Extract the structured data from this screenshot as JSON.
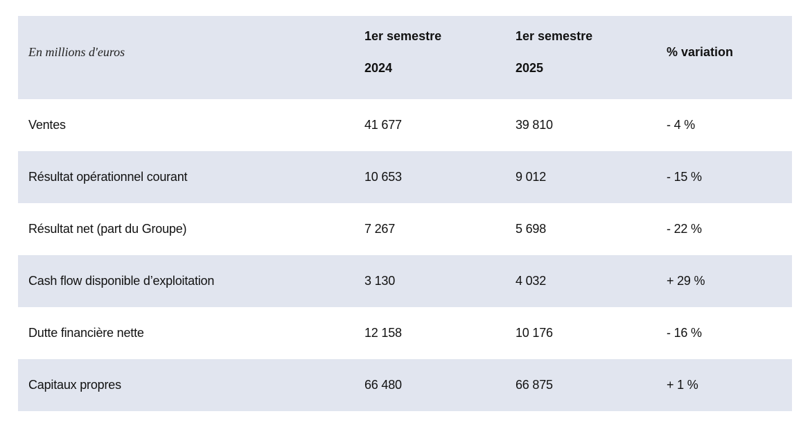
{
  "header": {
    "unit_label": "En millions d'euros",
    "col_2024_line1": "1er semestre",
    "col_2024_line2": "2024",
    "col_2025_line1": "1er semestre",
    "col_2025_line2": "2025",
    "col_variation": "% variation"
  },
  "rows": [
    {
      "label": "Ventes",
      "v2024": "41 677",
      "v2025": "39 810",
      "variation": "- 4 %"
    },
    {
      "label": "Résultat opérationnel courant",
      "v2024": "10 653",
      "v2025": "9 012",
      "variation": "- 15 %"
    },
    {
      "label": "Résultat net (part du Groupe)",
      "v2024": "7 267",
      "v2025": "5 698",
      "variation": "- 22 %"
    },
    {
      "label": "Cash flow disponible d’exploitation",
      "v2024": "3 130",
      "v2025": "4 032",
      "variation": "+ 29 %"
    },
    {
      "label": "Dutte financière nette",
      "v2024": "12 158",
      "v2025": "10 176",
      "variation": "- 16 %"
    },
    {
      "label": "Capitaux propres",
      "v2024": "66 480",
      "v2025": "66 875",
      "variation": "+ 1 %"
    }
  ],
  "colors": {
    "shaded_row": "#e1e5ef",
    "plain_row": "#ffffff",
    "text": "#111111"
  }
}
